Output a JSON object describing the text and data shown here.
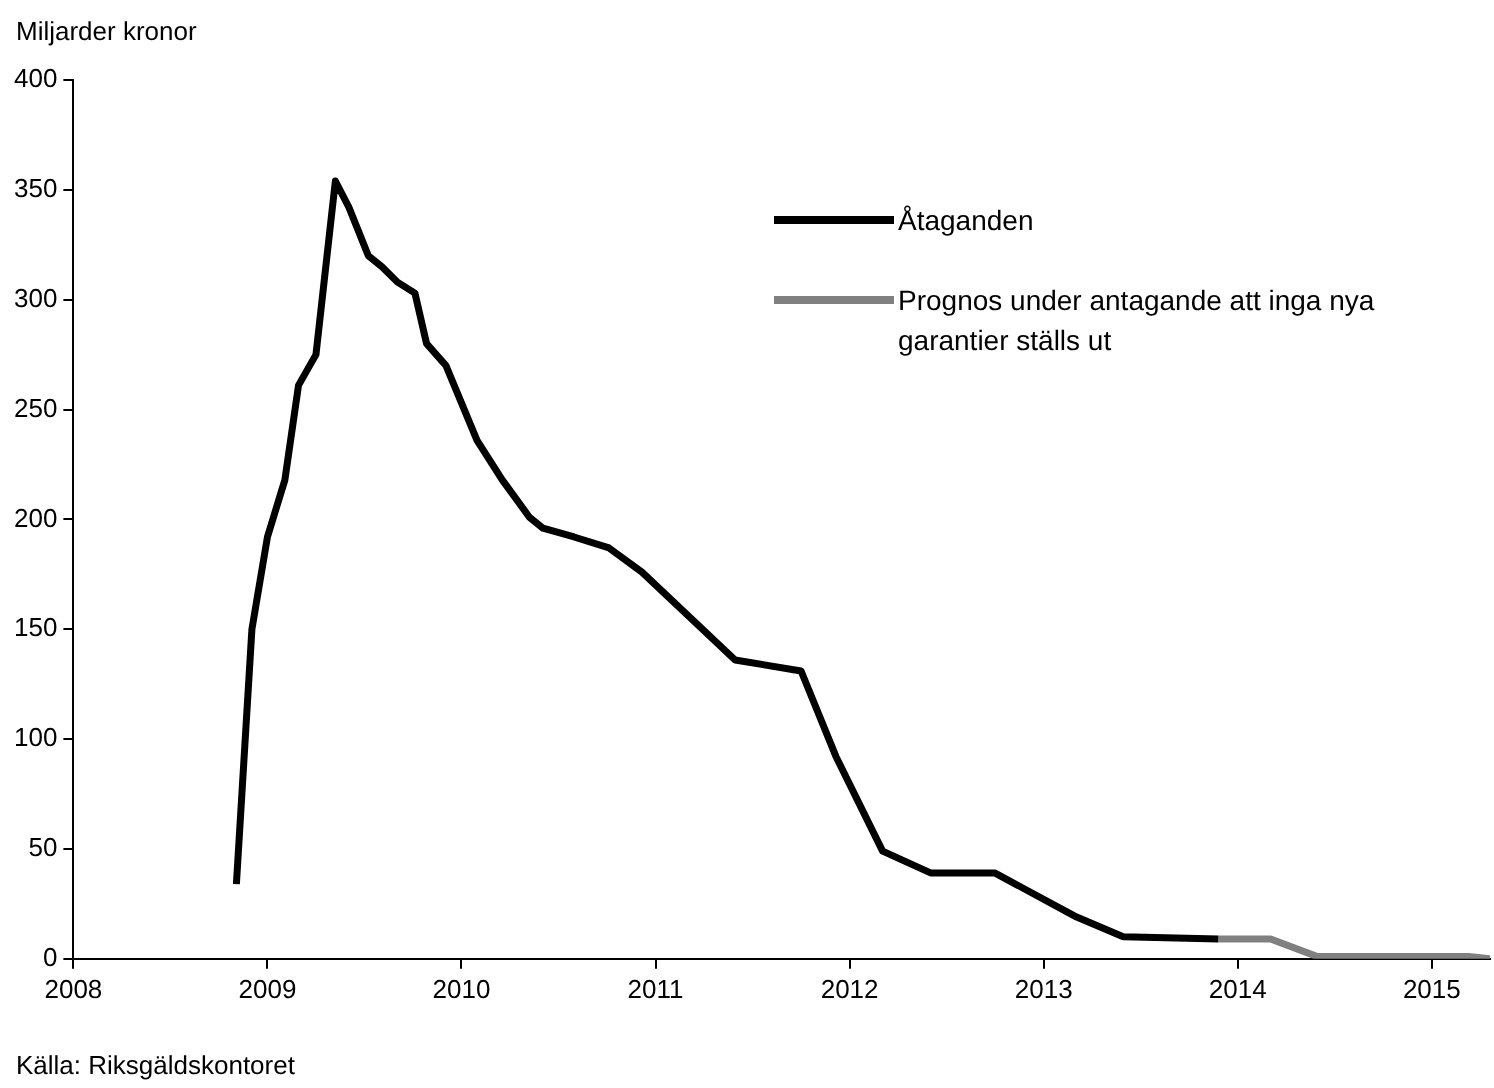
{
  "chart_data": {
    "type": "line",
    "ylabel": "Miljarder kronor",
    "annotations": [
      "Källa: Riksgäldskontoret"
    ],
    "xlim": [
      2008,
      2015.3
    ],
    "xticks": [
      2008,
      2009,
      2010,
      2011,
      2012,
      2013,
      2014,
      2015
    ],
    "ylim": [
      0,
      400
    ],
    "yticks": [
      0,
      50,
      100,
      150,
      200,
      250,
      300,
      350,
      400
    ],
    "grid": false,
    "legend": "top right",
    "marker": "none",
    "line_style": "solid",
    "series": [
      {
        "name": "Åtaganden",
        "color": "#000000",
        "x": [
          2008.84,
          2008.92,
          2009.0,
          2009.09,
          2009.16,
          2009.25,
          2009.35,
          2009.42,
          2009.52,
          2009.59,
          2009.67,
          2009.76,
          2009.82,
          2009.92,
          2010.08,
          2010.21,
          2010.35,
          2010.42,
          2010.58,
          2010.76,
          2010.93,
          2011.41,
          2011.75,
          2011.93,
          2012.17,
          2012.42,
          2012.75,
          2013.17,
          2013.41,
          2013.9
        ],
        "values": [
          34,
          150,
          192,
          218,
          261,
          275,
          354,
          342,
          320,
          315,
          308,
          303,
          280,
          270,
          236,
          218,
          201,
          196,
          192,
          187,
          176,
          136,
          131,
          92,
          49,
          39,
          39,
          19,
          10,
          9
        ]
      },
      {
        "name": "Prognos under antagande att inga nya garantier ställs ut",
        "color": "#808080",
        "x": [
          2013.9,
          2014.17,
          2014.41,
          2015.19,
          2015.3
        ],
        "values": [
          9,
          9,
          1,
          1,
          0
        ]
      }
    ]
  }
}
